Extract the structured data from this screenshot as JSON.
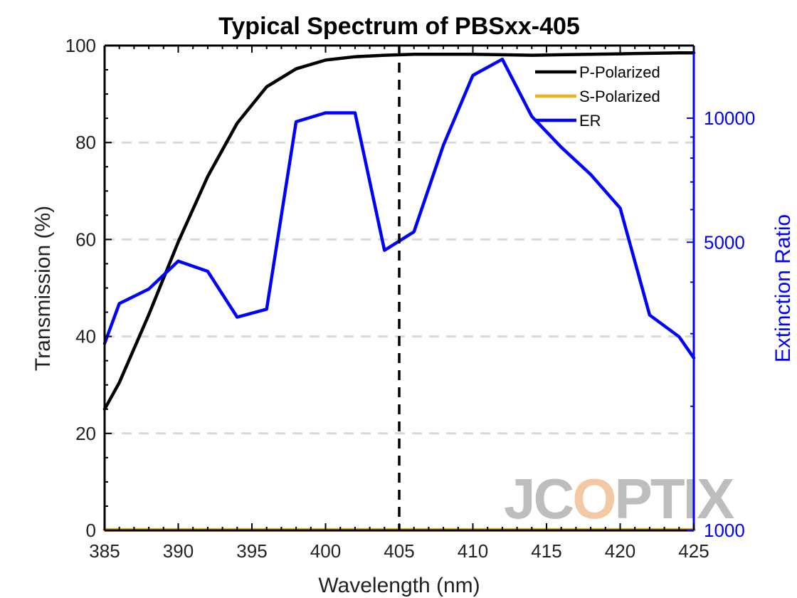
{
  "chart_data": {
    "type": "line",
    "title": "Typical Spectrum of PBSxx-405",
    "xlabel": "Wavelength (nm)",
    "ylabel": "Transmission (%)",
    "y2label": "Extinction Ratio",
    "xlim": [
      385,
      425
    ],
    "ylim": [
      0,
      100
    ],
    "y2lim": [
      1000,
      15000
    ],
    "y2scale": "log",
    "xticks": [
      385,
      390,
      395,
      400,
      405,
      410,
      415,
      420,
      425
    ],
    "yticks": [
      0,
      20,
      40,
      60,
      80,
      100
    ],
    "y2ticks": [
      1000,
      5000,
      10000
    ],
    "grid": "horizontal-dashed",
    "legend_position": "top-right",
    "reference_line": {
      "x": 405,
      "style": "dashed",
      "color": "#000000"
    },
    "series": [
      {
        "name": "P-Polarized",
        "axis": "left",
        "color": "#000000",
        "x": [
          385,
          386,
          388,
          390,
          392,
          394,
          396,
          398,
          400,
          402,
          404,
          406,
          408,
          410,
          412,
          414,
          416,
          418,
          420,
          422,
          424,
          425
        ],
        "y": [
          25,
          30.5,
          44.5,
          59.5,
          73,
          84,
          91.5,
          95.2,
          97.0,
          97.7,
          98.0,
          98.2,
          98.2,
          98.2,
          98.1,
          98.0,
          98.1,
          98.2,
          98.3,
          98.4,
          98.5,
          98.5
        ]
      },
      {
        "name": "S-Polarized",
        "axis": "left",
        "color": "#edb120",
        "x": [
          385,
          425
        ],
        "y": [
          0.1,
          0.1
        ]
      },
      {
        "name": "ER",
        "axis": "right",
        "color": "#0000ff",
        "x": [
          385,
          386,
          388,
          390,
          392,
          394,
          396,
          398,
          400,
          402,
          404,
          406,
          408,
          410,
          412,
          414,
          416,
          418,
          420,
          422,
          424,
          425
        ],
        "y": [
          2840,
          3550,
          3850,
          4500,
          4250,
          3290,
          3440,
          9800,
          10300,
          10300,
          4780,
          5300,
          8600,
          12700,
          13900,
          10100,
          8500,
          7300,
          6050,
          3330,
          2950,
          2620
        ]
      }
    ]
  },
  "watermark": "JCOPTIX",
  "colors": {
    "right_axis": "#0000ff",
    "grid": "#d9d9d9",
    "watermark": "#bdbdbd",
    "watermark_accent": "#f3c9a5"
  }
}
